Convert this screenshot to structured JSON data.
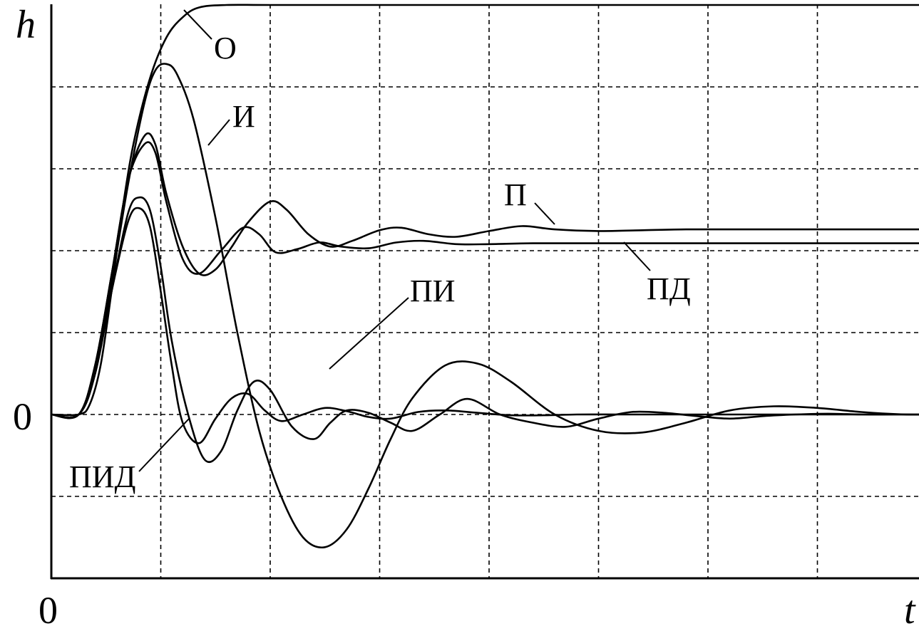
{
  "chart_data": {
    "type": "line",
    "ylabel": "h",
    "xlabel": "t",
    "x_tick_labels": [
      "0"
    ],
    "y_tick_labels": [
      "0"
    ],
    "xlim": [
      0,
      8
    ],
    "ylim": [
      -2,
      5
    ],
    "grid": true,
    "grid_style": "dashed",
    "line_color": "#000000",
    "series": [
      {
        "name": "О",
        "x": [
          0,
          0.25,
          0.35,
          0.45,
          0.55,
          0.65,
          0.75,
          0.9,
          1.05,
          1.2,
          1.35,
          1.6,
          2.0,
          3.0,
          8.0
        ],
        "y": [
          0,
          0,
          0.12,
          0.6,
          1.5,
          2.5,
          3.3,
          4.1,
          4.6,
          4.85,
          4.97,
          5.0,
          5.0,
          5.0,
          5.0
        ]
      },
      {
        "name": "И",
        "x": [
          0,
          0.25,
          0.4,
          0.55,
          0.7,
          0.85,
          0.95,
          1.05,
          1.15,
          1.3,
          1.5,
          1.7,
          1.9,
          2.1,
          2.3,
          2.5,
          2.7,
          2.9,
          3.1,
          3.3,
          3.6,
          3.9,
          4.2,
          4.6,
          5.0,
          5.4,
          5.8,
          6.2,
          6.6,
          7.0,
          7.4,
          7.8,
          8.0
        ],
        "y": [
          0,
          0,
          0.5,
          1.6,
          2.8,
          3.8,
          4.2,
          4.28,
          4.15,
          3.6,
          2.4,
          1.0,
          -0.2,
          -1.0,
          -1.5,
          -1.62,
          -1.4,
          -0.9,
          -0.3,
          0.2,
          0.6,
          0.62,
          0.4,
          0.0,
          -0.2,
          -0.22,
          -0.1,
          0.05,
          0.1,
          0.08,
          0.03,
          0.0,
          0.0
        ]
      },
      {
        "name": "П",
        "x": [
          0,
          0.25,
          0.4,
          0.55,
          0.7,
          0.85,
          0.95,
          1.05,
          1.2,
          1.35,
          1.5,
          1.65,
          1.8,
          2.0,
          2.15,
          2.35,
          2.55,
          2.75,
          3.0,
          3.2,
          3.45,
          3.7,
          4.0,
          4.3,
          4.6,
          5.0,
          5.4,
          5.8,
          6.2,
          7.0,
          8.0
        ],
        "y": [
          0,
          0,
          0.6,
          1.7,
          2.85,
          3.4,
          3.3,
          2.7,
          2.05,
          1.72,
          1.77,
          2.05,
          2.35,
          2.6,
          2.5,
          2.2,
          2.05,
          2.12,
          2.25,
          2.28,
          2.2,
          2.17,
          2.24,
          2.3,
          2.26,
          2.24,
          2.25,
          2.26,
          2.26,
          2.26,
          2.26
        ]
      },
      {
        "name": "ПД",
        "x": [
          0,
          0.25,
          0.4,
          0.55,
          0.7,
          0.85,
          0.95,
          1.05,
          1.2,
          1.35,
          1.55,
          1.75,
          1.9,
          2.05,
          2.25,
          2.45,
          2.65,
          2.9,
          3.15,
          3.4,
          3.7,
          4.0,
          4.4,
          5.0,
          6.0,
          8.0
        ],
        "y": [
          0,
          0,
          0.6,
          1.7,
          2.85,
          3.3,
          3.2,
          2.6,
          1.9,
          1.72,
          2.0,
          2.28,
          2.2,
          1.98,
          2.02,
          2.1,
          2.05,
          2.03,
          2.1,
          2.12,
          2.08,
          2.08,
          2.09,
          2.09,
          2.09,
          2.09
        ]
      },
      {
        "name": "ПИ",
        "x": [
          0,
          0.25,
          0.4,
          0.55,
          0.7,
          0.8,
          0.9,
          1.0,
          1.1,
          1.25,
          1.4,
          1.55,
          1.7,
          1.85,
          2.0,
          2.2,
          2.4,
          2.55,
          2.7,
          2.9,
          3.1,
          3.3,
          3.55,
          3.8,
          4.1,
          4.4,
          4.7,
          5.0,
          5.3,
          5.6,
          5.9,
          6.2,
          6.5,
          6.8,
          7.1,
          7.4,
          7.7,
          8.0
        ],
        "y": [
          0,
          0,
          0.5,
          1.5,
          2.45,
          2.65,
          2.5,
          1.8,
          0.9,
          0.0,
          -0.55,
          -0.45,
          0.05,
          0.4,
          0.3,
          -0.15,
          -0.3,
          -0.1,
          0.05,
          0.02,
          -0.1,
          -0.2,
          0.0,
          0.19,
          0.0,
          -0.1,
          -0.15,
          -0.05,
          0.03,
          0.02,
          -0.02,
          -0.05,
          -0.02,
          0.0,
          0.01,
          0.0,
          0.0,
          0.0
        ]
      },
      {
        "name": "ПИД",
        "x": [
          0,
          0.25,
          0.4,
          0.55,
          0.7,
          0.8,
          0.9,
          1.0,
          1.1,
          1.2,
          1.35,
          1.5,
          1.65,
          1.8,
          1.95,
          2.1,
          2.3,
          2.5,
          2.7,
          2.9,
          3.1,
          3.35,
          3.6,
          3.9,
          4.2,
          4.5,
          4.8,
          5.2,
          5.6,
          6.0,
          6.5,
          7.0,
          7.5,
          8.0
        ],
        "y": [
          0,
          0,
          0.5,
          1.5,
          2.35,
          2.52,
          2.3,
          1.5,
          0.6,
          -0.1,
          -0.35,
          -0.05,
          0.2,
          0.25,
          0.05,
          -0.08,
          0.0,
          0.08,
          0.04,
          -0.03,
          -0.05,
          0.03,
          0.05,
          0.02,
          -0.01,
          -0.01,
          0.0,
          0.0,
          0.0,
          0.0,
          0.0,
          0.0,
          0.0,
          0.0
        ]
      }
    ]
  }
}
